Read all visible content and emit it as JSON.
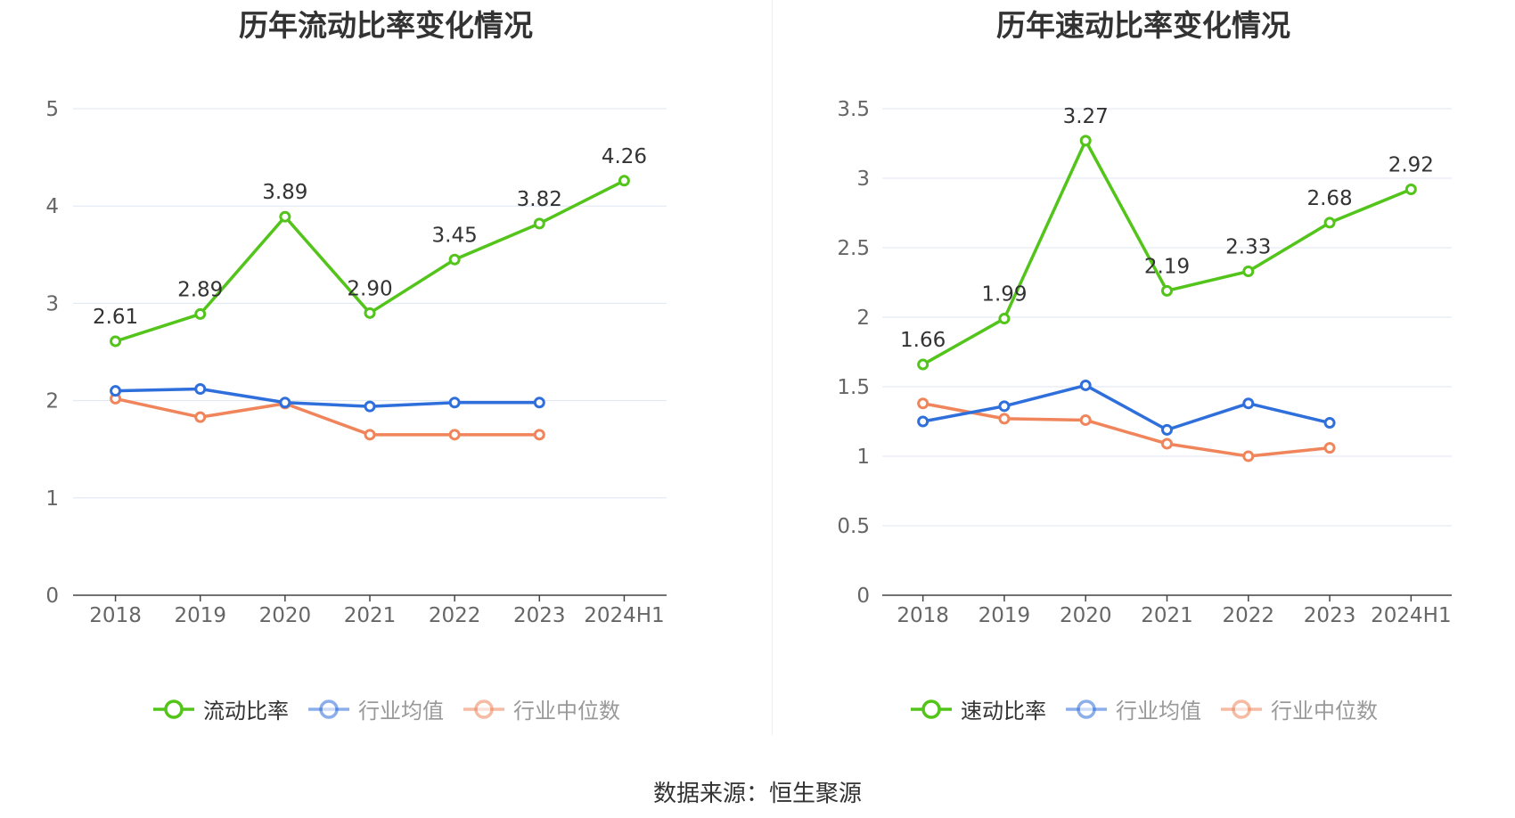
{
  "footer": {
    "source": "数据来源：恒生聚源"
  },
  "chart_data": [
    {
      "type": "line",
      "title": "历年流动比率变化情况",
      "categories": [
        "2018",
        "2019",
        "2020",
        "2021",
        "2022",
        "2023",
        "2024H1"
      ],
      "ylim": [
        0,
        5
      ],
      "yticks": [
        "0",
        "1",
        "2",
        "3",
        "4",
        "5"
      ],
      "grid": true,
      "legend": "bottom",
      "series": [
        {
          "name": "流动比率",
          "color": "#52c41a",
          "labeled": true,
          "values": [
            2.61,
            2.89,
            3.89,
            2.9,
            3.45,
            3.82,
            4.26
          ],
          "labels": [
            "2.61",
            "2.89",
            "3.89",
            "2.90",
            "3.45",
            "3.82",
            "4.26"
          ]
        },
        {
          "name": "行业均值",
          "color": "#2f6fdb",
          "labeled": false,
          "values": [
            2.1,
            2.12,
            1.98,
            1.94,
            1.98,
            1.98,
            null
          ]
        },
        {
          "name": "行业中位数",
          "color": "#f0845a",
          "labeled": false,
          "values": [
            2.02,
            1.83,
            1.97,
            1.65,
            1.65,
            1.65,
            null
          ]
        }
      ]
    },
    {
      "type": "line",
      "title": "历年速动比率变化情况",
      "categories": [
        "2018",
        "2019",
        "2020",
        "2021",
        "2022",
        "2023",
        "2024H1"
      ],
      "ylim": [
        0,
        3.5
      ],
      "yticks": [
        "0",
        "0.5",
        "1",
        "1.5",
        "2",
        "2.5",
        "3",
        "3.5"
      ],
      "grid": true,
      "legend": "bottom",
      "series": [
        {
          "name": "速动比率",
          "color": "#52c41a",
          "labeled": true,
          "values": [
            1.66,
            1.99,
            3.27,
            2.19,
            2.33,
            2.68,
            2.92
          ],
          "labels": [
            "1.66",
            "1.99",
            "3.27",
            "2.19",
            "2.33",
            "2.68",
            "2.92"
          ]
        },
        {
          "name": "行业均值",
          "color": "#2f6fdb",
          "labeled": false,
          "values": [
            1.25,
            1.36,
            1.51,
            1.19,
            1.38,
            1.24,
            null
          ]
        },
        {
          "name": "行业中位数",
          "color": "#f0845a",
          "labeled": false,
          "values": [
            1.38,
            1.27,
            1.26,
            1.09,
            1.0,
            1.06,
            null
          ]
        }
      ]
    }
  ]
}
